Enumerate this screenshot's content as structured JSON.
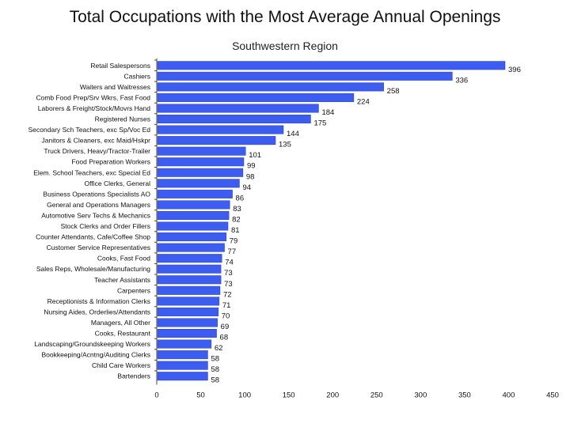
{
  "chart_data": {
    "type": "bar",
    "orientation": "horizontal",
    "title": "Total Occupations with the Most Average Annual Openings",
    "subtitle": "Southwestern Region",
    "categories": [
      "Retail Salespersons",
      "Cashiers",
      "Waiters and Waitresses",
      "Comb Food Prep/Srv Wkrs, Fast Food",
      "Laborers & Freight/Stock/Movrs Hand",
      "Registered Nurses",
      "Secondary Sch Teachers, exc Sp/Voc Ed",
      "Janitors & Cleaners, exc Maid/Hskpr",
      "Truck Drivers, Heavy/Tractor-Trailer",
      "Food Preparation Workers",
      "Elem. School Teachers, exc Special Ed",
      "Office Clerks, General",
      "Business Operations Specialists AO",
      "General and Operations Managers",
      "Automotive Serv Techs & Mechanics",
      "Stock Clerks and Order Fillers",
      "Counter Attendants, Cafe/Coffee Shop",
      "Customer Service Representatives",
      "Cooks, Fast Food",
      "Sales Reps, Wholesale/Manufacturing",
      "Teacher Assistants",
      "Carpenters",
      "Receptionists & Information Clerks",
      "Nursing Aides, Orderlies/Attendants",
      "Managers, All Other",
      "Cooks, Restaurant",
      "Landscaping/Groundskeeping Workers",
      "Bookkeeping/Acntng/Auditing Clerks",
      "Child Care Workers",
      "Bartenders"
    ],
    "values": [
      396,
      336,
      258,
      224,
      184,
      175,
      144,
      135,
      101,
      99,
      98,
      94,
      86,
      83,
      82,
      81,
      79,
      77,
      74,
      73,
      73,
      72,
      71,
      70,
      69,
      68,
      62,
      58,
      58,
      58
    ],
    "xlim": [
      0,
      450
    ],
    "xticks": [
      0,
      50,
      100,
      150,
      200,
      250,
      300,
      350,
      400,
      450
    ],
    "bar_color": "#3d5cf0",
    "grid": false,
    "legend": "none"
  }
}
